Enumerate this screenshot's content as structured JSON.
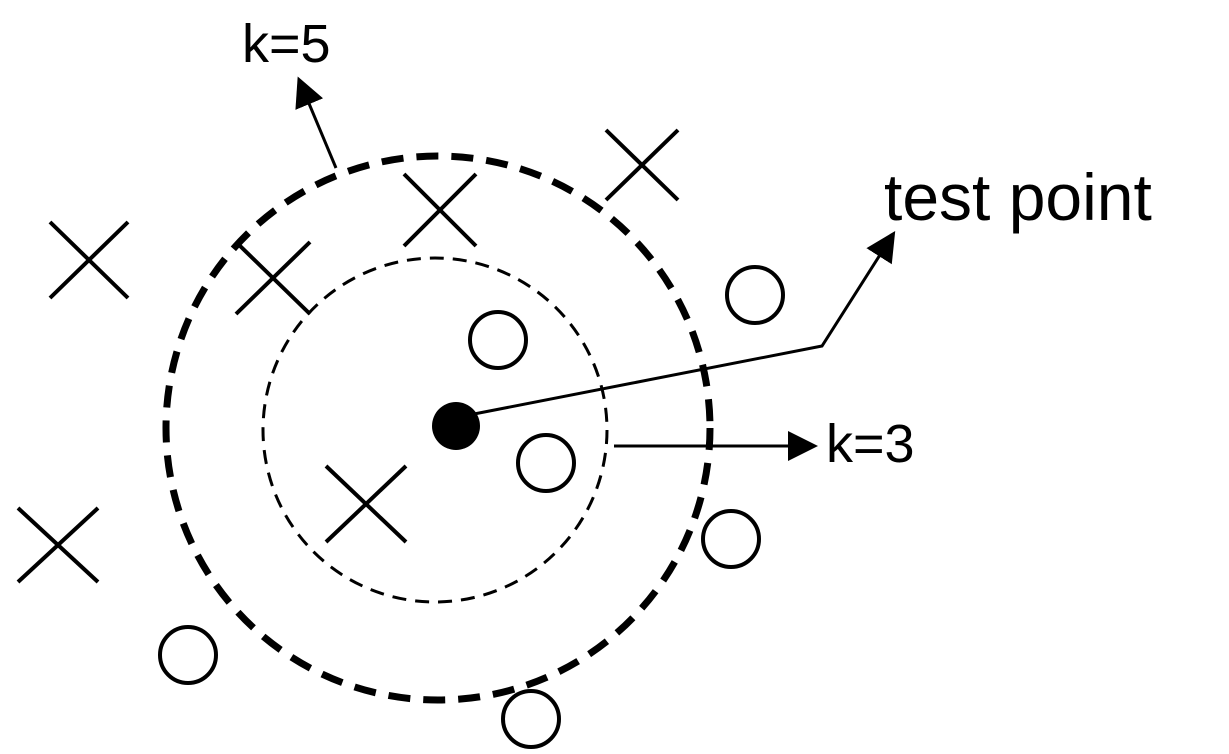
{
  "labels": {
    "k5": "k=5",
    "k3": "k=3",
    "test_point": "test point"
  },
  "legend_semantics": {
    "x_marker": "class-x-sample",
    "o_marker": "class-o-sample",
    "filled_dot": "test-point"
  },
  "colors": {
    "stroke": "#000000",
    "background": "#ffffff"
  }
}
